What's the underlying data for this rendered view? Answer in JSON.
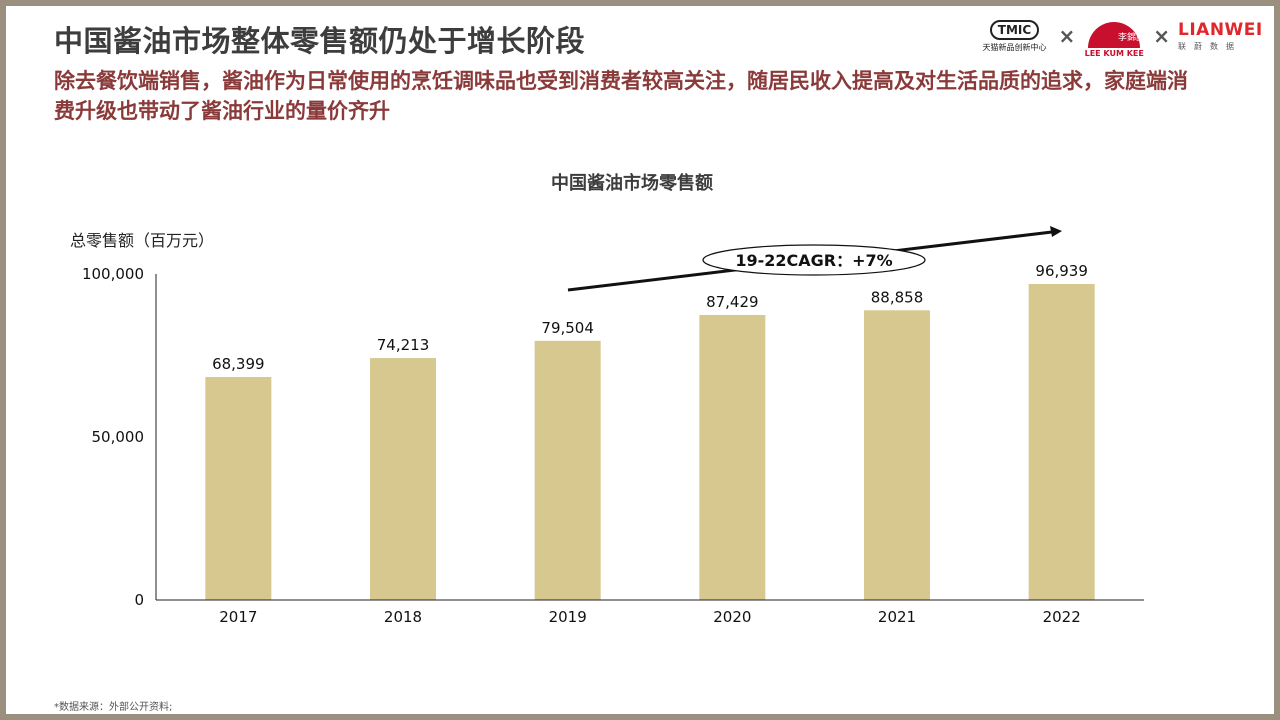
{
  "title": "中国酱油市场整体零售额仍处于增长阶段",
  "subtitle": "除去餐饮端销售，酱油作为日常使用的烹饪调味品也受到消费者较高关注，随居民收入提高及对生活品质的追求，家庭端消费升级也带动了酱油行业的量价齐升",
  "logos": {
    "tmic_badge": "TMIC",
    "tmic_sub": "天猫新品创新中心",
    "times1": "×",
    "lkk_cn": "李錦記",
    "lkk_sub": "LEE KUM KEE",
    "times2": "×",
    "lw_name": "LIANWEI",
    "lw_sub": "联蔚数据"
  },
  "source": "*数据来源：外部公开资料;",
  "colors": {
    "bar": "#d6c88f",
    "title": "#3d3d3d",
    "subtitle": "#8b3a3a",
    "lkk_red": "#c8102e",
    "lw_red": "#e0272c"
  },
  "chart_data": {
    "type": "bar",
    "title": "中国酱油市场零售额",
    "ylabel": "总零售额（百万元）",
    "xlabel": "",
    "categories": [
      "2017",
      "2018",
      "2019",
      "2020",
      "2021",
      "2022"
    ],
    "values": [
      68399,
      74213,
      79504,
      87429,
      88858,
      96939
    ],
    "value_labels": [
      "68,399",
      "74,213",
      "79,504",
      "87,429",
      "88,858",
      "96,939"
    ],
    "ylim": [
      0,
      100000
    ],
    "yticks": [
      0,
      50000,
      100000
    ],
    "ytick_labels": [
      "0",
      "50,000",
      "100,000"
    ],
    "grid": false,
    "annotation": "19-22CAGR：+7%"
  }
}
